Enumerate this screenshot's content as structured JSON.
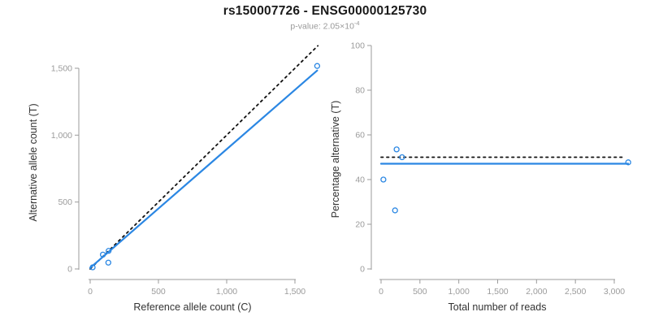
{
  "header": {
    "title": "rs150007726 - ENSG00000125730",
    "pvalue_label": "p-value: 2.05×10",
    "pvalue_exponent": "-4"
  },
  "colors": {
    "accent_blue": "#2B87E3",
    "dotted_black": "#111111",
    "axis_line": "#9b9b9b",
    "tick_label": "#9b9b9b",
    "axis_title": "#333333",
    "title": "#1a1a1a",
    "subtitle": "#999999",
    "background": "#ffffff"
  },
  "chart_data": [
    {
      "type": "scatter",
      "title": "",
      "xlabel": "Reference allele count (C)",
      "ylabel": "Alternative allele count (T)",
      "xticks": [
        0,
        500,
        1000,
        1500
      ],
      "xtick_labels": [
        "0",
        "500",
        "1,000",
        "1,500"
      ],
      "yticks": [
        0,
        500,
        1000,
        1500
      ],
      "ytick_labels": [
        "0",
        "500",
        "1,000",
        "1,500"
      ],
      "xlim": [
        0,
        1670
      ],
      "ylim": [
        0,
        1560
      ],
      "grid": false,
      "legend": false,
      "points": [
        {
          "x": 18,
          "y": 12
        },
        {
          "x": 93,
          "y": 107
        },
        {
          "x": 133,
          "y": 47
        },
        {
          "x": 135,
          "y": 135
        },
        {
          "x": 1663,
          "y": 1517
        }
      ],
      "lines": [
        {
          "name": "identity-line",
          "style": "dotted",
          "color": "dotted_black",
          "x1": 0,
          "y1": 0,
          "x2": 1668,
          "y2": 1668
        },
        {
          "name": "fit-line",
          "style": "solid",
          "color": "accent_blue",
          "x1": 0,
          "y1": 8,
          "x2": 1663,
          "y2": 1483
        }
      ]
    },
    {
      "type": "scatter",
      "title": "",
      "xlabel": "Total number of reads",
      "ylabel": "Percentage alternative (T)",
      "xticks": [
        0,
        500,
        1000,
        1500,
        2000,
        2500,
        3000
      ],
      "xtick_labels": [
        "0",
        "500",
        "1,000",
        "1,500",
        "2,000",
        "2,500",
        "3,000"
      ],
      "yticks": [
        0,
        20,
        40,
        60,
        80,
        100
      ],
      "ytick_labels": [
        "0",
        "20",
        "40",
        "60",
        "80",
        "100"
      ],
      "xlim": [
        0,
        3180
      ],
      "ylim": [
        0,
        100
      ],
      "grid": false,
      "legend": false,
      "points": [
        {
          "x": 30,
          "y": 40
        },
        {
          "x": 180,
          "y": 26.2
        },
        {
          "x": 200,
          "y": 53.5
        },
        {
          "x": 270,
          "y": 50
        },
        {
          "x": 3180,
          "y": 47.7
        }
      ],
      "lines": [
        {
          "name": "expected-ratio-line",
          "style": "dotted",
          "color": "dotted_black",
          "x1": 0,
          "y1": 50,
          "x2": 3125,
          "y2": 50
        },
        {
          "name": "fit-line",
          "style": "solid",
          "color": "accent_blue",
          "x1": 0,
          "y1": 47.1,
          "x2": 3180,
          "y2": 47.1
        }
      ]
    }
  ]
}
